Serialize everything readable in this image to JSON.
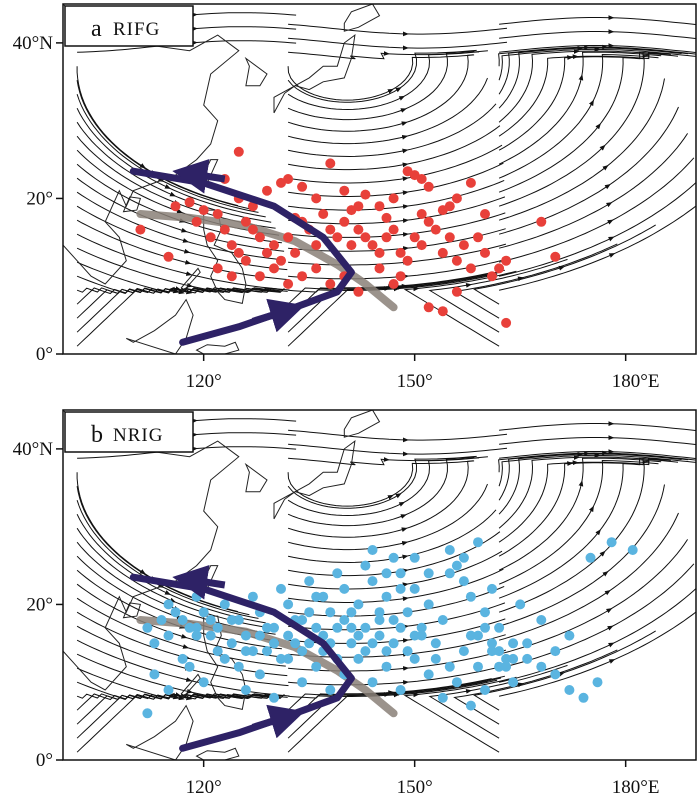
{
  "colors": {
    "streamline": "#111111",
    "coast": "#222222",
    "track": "#2e2266",
    "axis": "#8a8078",
    "panel_a_points": "#e8403a",
    "panel_b_points": "#5ab4e0"
  },
  "panels": [
    {
      "id": "a",
      "letter": "a",
      "name": "RIFG",
      "point_color": "#e8403a",
      "x_ticks": [
        "120°",
        "150°",
        "180°E"
      ],
      "y_ticks": [
        "40°N",
        "20°",
        "0°"
      ],
      "points": [
        [
          125,
          26
        ],
        [
          123,
          22.5
        ],
        [
          125,
          20
        ],
        [
          127,
          19
        ],
        [
          129,
          21
        ],
        [
          131,
          22
        ],
        [
          132,
          22.5
        ],
        [
          134,
          21.5
        ],
        [
          136,
          20
        ],
        [
          138,
          24.5
        ],
        [
          140,
          21
        ],
        [
          142,
          19
        ],
        [
          143,
          20.5
        ],
        [
          145,
          19
        ],
        [
          147,
          20
        ],
        [
          149,
          23.5
        ],
        [
          150,
          23
        ],
        [
          151,
          22.5
        ],
        [
          152,
          21.5
        ],
        [
          155,
          19
        ],
        [
          158,
          22
        ],
        [
          160,
          18
        ],
        [
          163,
          12
        ],
        [
          168,
          17
        ],
        [
          170,
          12.5
        ],
        [
          111,
          16
        ],
        [
          115,
          12.5
        ],
        [
          116,
          19
        ],
        [
          118,
          19.5
        ],
        [
          119,
          17
        ],
        [
          120,
          18.5
        ],
        [
          121,
          15
        ],
        [
          122,
          18
        ],
        [
          123,
          16
        ],
        [
          124,
          14
        ],
        [
          125,
          13
        ],
        [
          126,
          17
        ],
        [
          127,
          16
        ],
        [
          128,
          15
        ],
        [
          129,
          13
        ],
        [
          130,
          14
        ],
        [
          131,
          12
        ],
        [
          132,
          15
        ],
        [
          133,
          13
        ],
        [
          134,
          17
        ],
        [
          135,
          16
        ],
        [
          136,
          14
        ],
        [
          137,
          18
        ],
        [
          138,
          16
        ],
        [
          139,
          15
        ],
        [
          140,
          17
        ],
        [
          141,
          14
        ],
        [
          142,
          16
        ],
        [
          143,
          15
        ],
        [
          144,
          14
        ],
        [
          145,
          13
        ],
        [
          146,
          15
        ],
        [
          147,
          16
        ],
        [
          148,
          13
        ],
        [
          149,
          12
        ],
        [
          150,
          15
        ],
        [
          151,
          14
        ],
        [
          152,
          17
        ],
        [
          153,
          16
        ],
        [
          154,
          13
        ],
        [
          155,
          15
        ],
        [
          156,
          12
        ],
        [
          157,
          14
        ],
        [
          158,
          11
        ],
        [
          159,
          15
        ],
        [
          160,
          13
        ],
        [
          161,
          10
        ],
        [
          162,
          11
        ],
        [
          145,
          11
        ],
        [
          147,
          9
        ],
        [
          148,
          10
        ],
        [
          152,
          6
        ],
        [
          154,
          5.5
        ],
        [
          156,
          8
        ],
        [
          163,
          4
        ],
        [
          122,
          11
        ],
        [
          124,
          10
        ],
        [
          126,
          12
        ],
        [
          128,
          10
        ],
        [
          130,
          11
        ],
        [
          132,
          9
        ],
        [
          134,
          10
        ],
        [
          136,
          11
        ],
        [
          138,
          9
        ],
        [
          140,
          10
        ],
        [
          142,
          8
        ],
        [
          133,
          17.5
        ],
        [
          141,
          18.5
        ],
        [
          146,
          17.5
        ],
        [
          151,
          18
        ],
        [
          154,
          18.5
        ],
        [
          156,
          20
        ]
      ]
    },
    {
      "id": "b",
      "letter": "b",
      "name": "NRIG",
      "point_color": "#5ab4e0",
      "x_ticks": [
        "120°",
        "150°",
        "180°E"
      ],
      "y_ticks": [
        "40°N",
        "20°",
        "0°"
      ],
      "points": [
        [
          112,
          17
        ],
        [
          113,
          15
        ],
        [
          114,
          18
        ],
        [
          115,
          16
        ],
        [
          116,
          19
        ],
        [
          117,
          13
        ],
        [
          118,
          17
        ],
        [
          119,
          21
        ],
        [
          120,
          19
        ],
        [
          121,
          16
        ],
        [
          122,
          14
        ],
        [
          123,
          20
        ],
        [
          124,
          18
        ],
        [
          125,
          12
        ],
        [
          126,
          16
        ],
        [
          127,
          21
        ],
        [
          128,
          19
        ],
        [
          129,
          14
        ],
        [
          130,
          17
        ],
        [
          131,
          22
        ],
        [
          132,
          20
        ],
        [
          133,
          15
        ],
        [
          134,
          18
        ],
        [
          135,
          23
        ],
        [
          136,
          21
        ],
        [
          137,
          16
        ],
        [
          138,
          19
        ],
        [
          139,
          24
        ],
        [
          140,
          22
        ],
        [
          141,
          17
        ],
        [
          142,
          20
        ],
        [
          143,
          25
        ],
        [
          144,
          23
        ],
        [
          145,
          18
        ],
        [
          146,
          21
        ],
        [
          147,
          26
        ],
        [
          148,
          24
        ],
        [
          149,
          19
        ],
        [
          150,
          22
        ],
        [
          151,
          17
        ],
        [
          152,
          20
        ],
        [
          153,
          15
        ],
        [
          154,
          18
        ],
        [
          155,
          27
        ],
        [
          156,
          25
        ],
        [
          157,
          23
        ],
        [
          158,
          21
        ],
        [
          159,
          16
        ],
        [
          160,
          19
        ],
        [
          161,
          14
        ],
        [
          162,
          17
        ],
        [
          163,
          12
        ],
        [
          164,
          15
        ],
        [
          165,
          20
        ],
        [
          166,
          13
        ],
        [
          168,
          18
        ],
        [
          170,
          11
        ],
        [
          172,
          16
        ],
        [
          175,
          26
        ],
        [
          178,
          28
        ],
        [
          181,
          27
        ],
        [
          113,
          11
        ],
        [
          115,
          9
        ],
        [
          118,
          12
        ],
        [
          120,
          10
        ],
        [
          123,
          13
        ],
        [
          126,
          9
        ],
        [
          128,
          11
        ],
        [
          130,
          8
        ],
        [
          132,
          13
        ],
        [
          134,
          10
        ],
        [
          136,
          12
        ],
        [
          138,
          9
        ],
        [
          140,
          11
        ],
        [
          142,
          13
        ],
        [
          144,
          10
        ],
        [
          146,
          12
        ],
        [
          148,
          9
        ],
        [
          150,
          13
        ],
        [
          152,
          11
        ],
        [
          154,
          8
        ],
        [
          156,
          10
        ],
        [
          158,
          7
        ],
        [
          160,
          9
        ],
        [
          162,
          12
        ],
        [
          164,
          10
        ],
        [
          112,
          6
        ],
        [
          135,
          15
        ],
        [
          137,
          14
        ],
        [
          139,
          13
        ],
        [
          141,
          15
        ],
        [
          143,
          14
        ],
        [
          145,
          16
        ],
        [
          147,
          15
        ],
        [
          149,
          14
        ],
        [
          151,
          16
        ],
        [
          153,
          13
        ],
        [
          155,
          12
        ],
        [
          157,
          14
        ],
        [
          159,
          12
        ],
        [
          161,
          15
        ],
        [
          163,
          13
        ],
        [
          119,
          17
        ],
        [
          121,
          18
        ],
        [
          124,
          15
        ],
        [
          126,
          14
        ],
        [
          128,
          16
        ],
        [
          130,
          15
        ],
        [
          132,
          16
        ],
        [
          134,
          14
        ],
        [
          136,
          17
        ],
        [
          138,
          15
        ],
        [
          140,
          18
        ],
        [
          142,
          16
        ],
        [
          144,
          15
        ],
        [
          146,
          14
        ],
        [
          148,
          17
        ],
        [
          150,
          16
        ],
        [
          115,
          20
        ],
        [
          117,
          18
        ],
        [
          119,
          16
        ],
        [
          122,
          17
        ],
        [
          125,
          18
        ],
        [
          127,
          14
        ],
        [
          129,
          17
        ],
        [
          131,
          13
        ],
        [
          133,
          18
        ],
        [
          135,
          19
        ],
        [
          137,
          21
        ],
        [
          139,
          17
        ],
        [
          141,
          19
        ],
        [
          143,
          17
        ],
        [
          145,
          19
        ],
        [
          147,
          18
        ],
        [
          155,
          24
        ],
        [
          157,
          26
        ],
        [
          159,
          28
        ],
        [
          161,
          22
        ],
        [
          150,
          26
        ],
        [
          152,
          24
        ],
        [
          148,
          22
        ],
        [
          146,
          24
        ],
        [
          144,
          27
        ],
        [
          158,
          16
        ],
        [
          160,
          17
        ],
        [
          162,
          14
        ],
        [
          164,
          13
        ],
        [
          166,
          15
        ],
        [
          168,
          12
        ],
        [
          170,
          14
        ],
        [
          172,
          9
        ],
        [
          174,
          8
        ],
        [
          176,
          10
        ]
      ]
    }
  ]
}
